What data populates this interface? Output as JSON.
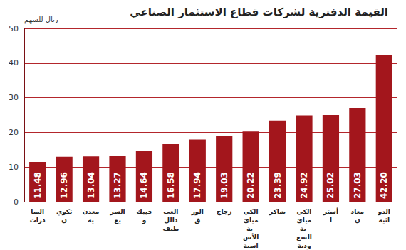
{
  "chart_data": {
    "type": "bar",
    "title": "القيمة الدفترية لشركات قطاع الاستثمار الصناعي",
    "ylabel": "ريال للسهم",
    "categories": [
      "الصادرات",
      "تكوين",
      "معدنية",
      "السريع",
      "فيبكو",
      "العبداللطيف",
      "الورق",
      "زجاج",
      "الكيميائية الأساسية",
      "شاكر",
      "الكيميائية السعودية",
      "أسترا",
      "معادن",
      "الدوائية"
    ],
    "values": [
      11.48,
      12.96,
      13.04,
      13.27,
      14.64,
      16.58,
      17.94,
      19.03,
      20.22,
      23.39,
      24.92,
      25.02,
      27.03,
      42.2
    ],
    "value_labels": [
      "11.48",
      "12.96",
      "13.04",
      "13.27",
      "14.64",
      "16.58",
      "17.94",
      "19.03",
      "20.22",
      "23.39",
      "24.92",
      "25.02",
      "27.03",
      "42.20"
    ],
    "color": "#a3161c",
    "ylim": [
      0,
      50
    ],
    "yticks": [
      0,
      10,
      20,
      30,
      40,
      50
    ],
    "grid": true,
    "data_labels": true
  }
}
